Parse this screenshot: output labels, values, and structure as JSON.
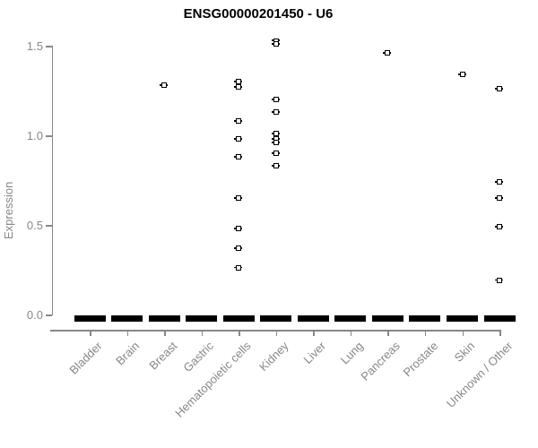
{
  "chart_data": {
    "type": "scatter",
    "title": "ENSG00000201450 - U6",
    "ylabel": "Expression",
    "xlabel": "",
    "ylim": [
      0.0,
      1.58
    ],
    "yticks": [
      "0.0",
      "0.5",
      "1.0",
      "1.5"
    ],
    "grid": false,
    "legend": false,
    "marker": "open-square",
    "categories": [
      "Bladder",
      "Brain",
      "Breast",
      "Gastric",
      "Hematopoietic cells",
      "Kidney",
      "Liver",
      "Lung",
      "Pancreas",
      "Prostate",
      "Skin",
      "Unknown / Other"
    ],
    "series": [
      {
        "category": "Bladder",
        "values": [],
        "zero_cluster": true
      },
      {
        "category": "Brain",
        "values": [],
        "zero_cluster": true
      },
      {
        "category": "Breast",
        "values": [
          1.28
        ],
        "zero_cluster": true
      },
      {
        "category": "Gastric",
        "values": [],
        "zero_cluster": true
      },
      {
        "category": "Hematopoietic cells",
        "values": [
          1.3,
          1.27,
          1.08,
          0.98,
          0.88,
          0.65,
          0.48,
          0.37,
          0.26
        ],
        "zero_cluster": true
      },
      {
        "category": "Kidney",
        "values": [
          1.53,
          1.51,
          1.2,
          1.13,
          1.01,
          0.98,
          0.96,
          0.9,
          0.83
        ],
        "zero_cluster": true
      },
      {
        "category": "Liver",
        "values": [],
        "zero_cluster": true
      },
      {
        "category": "Lung",
        "values": [],
        "zero_cluster": true
      },
      {
        "category": "Pancreas",
        "values": [
          1.46
        ],
        "zero_cluster": true
      },
      {
        "category": "Prostate",
        "values": [],
        "zero_cluster": true
      },
      {
        "category": "Skin",
        "values": [
          1.34
        ],
        "zero_cluster": true
      },
      {
        "category": "Unknown / Other",
        "values": [
          1.26,
          0.74,
          0.65,
          0.49,
          0.19
        ],
        "zero_cluster": true
      }
    ],
    "zero_cluster_note": "thick black horizontal dash at expression 0 in every category (many overlapping points)",
    "colors": {
      "marker": "#000000",
      "zero_bar": "#000000",
      "axis": "#878787",
      "tick_text": "#878787",
      "title_text": "#000000",
      "background": "#ffffff"
    }
  }
}
